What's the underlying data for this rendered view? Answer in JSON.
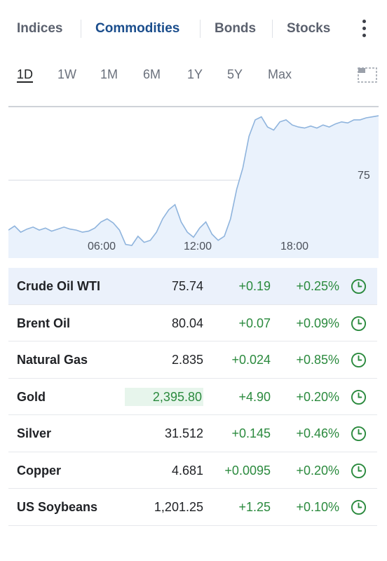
{
  "category_tabs": [
    "Indices",
    "Commodities",
    "Bonds",
    "Stocks"
  ],
  "active_category": "Commodities",
  "range_tabs": [
    "1D",
    "1W",
    "1M",
    "6M",
    "1Y",
    "5Y",
    "Max"
  ],
  "active_range": "1D",
  "chart": {
    "price_tick": "75",
    "time_ticks": [
      "06:00",
      "12:00",
      "18:00"
    ]
  },
  "chart_data": {
    "type": "area",
    "series_values": [
      74.62,
      74.66,
      74.6,
      74.63,
      74.65,
      74.62,
      74.64,
      74.61,
      74.63,
      74.65,
      74.63,
      74.62,
      74.6,
      74.61,
      74.64,
      74.7,
      74.73,
      74.69,
      74.62,
      74.48,
      74.47,
      74.56,
      74.5,
      74.52,
      74.6,
      74.73,
      74.82,
      74.87,
      74.7,
      74.6,
      74.55,
      74.64,
      74.7,
      74.58,
      74.52,
      74.56,
      74.73,
      75.02,
      75.23,
      75.54,
      75.7,
      75.73,
      75.63,
      75.6,
      75.68,
      75.7,
      75.65,
      75.63,
      75.62,
      75.64,
      75.62,
      75.65,
      75.63,
      75.66,
      75.68,
      75.67,
      75.7,
      75.7,
      75.72,
      75.73,
      75.74
    ],
    "y_tick": 75,
    "x_ticks": [
      "06:00",
      "12:00",
      "18:00"
    ]
  },
  "rows": [
    {
      "name": "Crude Oil WTI",
      "last": "75.74",
      "chg": "+0.19",
      "chgp": "+0.25%"
    },
    {
      "name": "Brent Oil",
      "last": "80.04",
      "chg": "+0.07",
      "chgp": "+0.09%"
    },
    {
      "name": "Natural Gas",
      "last": "2.835",
      "chg": "+0.024",
      "chgp": "+0.85%"
    },
    {
      "name": "Gold",
      "last": "2,395.80",
      "chg": "+4.90",
      "chgp": "+0.20%"
    },
    {
      "name": "Silver",
      "last": "31.512",
      "chg": "+0.145",
      "chgp": "+0.46%"
    },
    {
      "name": "Copper",
      "last": "4.681",
      "chg": "+0.0095",
      "chgp": "+0.20%"
    },
    {
      "name": "US Soybeans",
      "last": "1,201.25",
      "chg": "+1.25",
      "chgp": "+0.10%"
    }
  ],
  "colors": {
    "active_tab": "#1a4d8c",
    "positive": "#2b8a3e",
    "chart_line": "#8fb4dd",
    "chart_fill": "#eaf2fc"
  }
}
